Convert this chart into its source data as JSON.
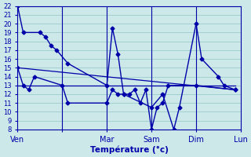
{
  "background_color": "#cce8e8",
  "grid_color": "#99cccc",
  "line_color": "#0000aa",
  "xlabel": "Température (°c)",
  "ylim": [
    8,
    22
  ],
  "xlim": [
    0,
    5
  ],
  "day_x": [
    0,
    1,
    2,
    3,
    4,
    5
  ],
  "day_labels": [
    "Ven",
    "",
    "Mar",
    "Sam",
    "Dim",
    "Lun"
  ],
  "vline_x": [
    1,
    2,
    3,
    4
  ],
  "series1_x": [
    0.0,
    0.125,
    0.5,
    0.625,
    0.75,
    0.875,
    1.125,
    2.0,
    2.125,
    2.25,
    2.375,
    3.0,
    3.25,
    3.5,
    3.625,
    4.0,
    4.125,
    4.5,
    4.625,
    4.875
  ],
  "series1_y": [
    22,
    19,
    19,
    18.5,
    17.5,
    17,
    15.5,
    13,
    19.5,
    16.5,
    12,
    10.5,
    12,
    8,
    10.5,
    20,
    16,
    14,
    13,
    12.5
  ],
  "series2_x": [
    0.0,
    0.125,
    0.25,
    0.375,
    1.0,
    1.125,
    2.0,
    2.125,
    2.25,
    2.375,
    2.5,
    2.625,
    2.75,
    2.875,
    3.0,
    3.125,
    3.25,
    3.375,
    4.0,
    4.875
  ],
  "series2_y": [
    15,
    13,
    12.5,
    14,
    13,
    11,
    11,
    12.5,
    12,
    12,
    12,
    12.5,
    11,
    12.5,
    8,
    10.5,
    11,
    13,
    13,
    12.5
  ],
  "trend1_x": [
    0.0,
    4.875
  ],
  "trend1_y": [
    15.0,
    12.5
  ],
  "trend2_x": [
    0.0,
    4.875
  ],
  "trend2_y": [
    13.0,
    13.0
  ]
}
